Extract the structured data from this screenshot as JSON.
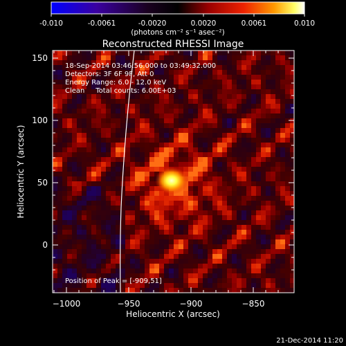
{
  "colorbar": {
    "ticks": [
      "-0.010",
      "-0.0061",
      "-0.0020",
      "0.0020",
      "0.0061",
      "0.010"
    ],
    "unit_label": "(photons cm⁻² s⁻¹ asec⁻²)",
    "colors": {
      "low": "#0000ff",
      "mid_low": "#1a0050",
      "zero": "#000000",
      "mid": "#aa0000",
      "high_mid": "#ff6600",
      "high": "#ffff66",
      "max": "#ffffff"
    }
  },
  "plot": {
    "title": "Reconstructed RHESSI Image",
    "xlabel": "Heliocentric X (arcsec)",
    "ylabel": "Heliocentric Y (arcsec)",
    "xticks": [
      "−1000",
      "−950",
      "−900",
      "−850"
    ],
    "yticks": [
      "0",
      "50",
      "100",
      "150"
    ],
    "x_range": [
      -1012,
      -818
    ],
    "y_range": [
      -42,
      155
    ]
  },
  "info": {
    "line1": "18-Sep-2014 03:46:56.000 to 03:49:32.000",
    "line2": "Detectors: 3F 6F 9F, Att 0",
    "line3": "Energy Range: 6.0 - 12.0 keV",
    "line4": "Clean     Total counts: 6.00E+03",
    "peak": "Position of Peak = [-909,51]"
  },
  "peak_position": [
    -909,
    51
  ],
  "footer": {
    "date": "21-Dec-2014 11:20"
  }
}
